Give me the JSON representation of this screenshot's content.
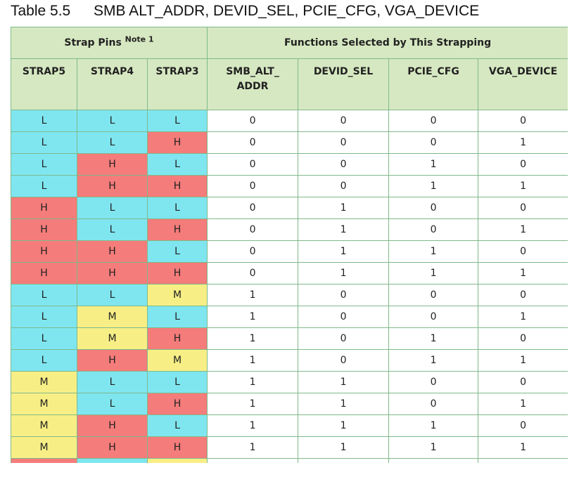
{
  "caption": {
    "number": "Table 5.5",
    "title": "SMB ALT_ADDR, DEVID_SEL, PCIE_CFG, VGA_DEVICE"
  },
  "header": {
    "group_strap": "Strap Pins",
    "group_strap_note": "Note 1",
    "group_functions": "Functions Selected by This Strapping",
    "columns": [
      "STRAP5",
      "STRAP4",
      "STRAP3",
      "SMB_ALT_ADDR",
      "DEVID_SEL",
      "PCIE_CFG",
      "VGA_DEVICE"
    ]
  },
  "rows": [
    [
      "L",
      "L",
      "L",
      "0",
      "0",
      "0",
      "0"
    ],
    [
      "L",
      "L",
      "H",
      "0",
      "0",
      "0",
      "1"
    ],
    [
      "L",
      "H",
      "L",
      "0",
      "0",
      "1",
      "0"
    ],
    [
      "L",
      "H",
      "H",
      "0",
      "0",
      "1",
      "1"
    ],
    [
      "H",
      "L",
      "L",
      "0",
      "1",
      "0",
      "0"
    ],
    [
      "H",
      "L",
      "H",
      "0",
      "1",
      "0",
      "1"
    ],
    [
      "H",
      "H",
      "L",
      "0",
      "1",
      "1",
      "0"
    ],
    [
      "H",
      "H",
      "H",
      "0",
      "1",
      "1",
      "1"
    ],
    [
      "L",
      "L",
      "M",
      "1",
      "0",
      "0",
      "0"
    ],
    [
      "L",
      "M",
      "L",
      "1",
      "0",
      "0",
      "1"
    ],
    [
      "L",
      "M",
      "H",
      "1",
      "0",
      "1",
      "0"
    ],
    [
      "L",
      "H",
      "M",
      "1",
      "0",
      "1",
      "1"
    ],
    [
      "M",
      "L",
      "L",
      "1",
      "1",
      "0",
      "0"
    ],
    [
      "M",
      "L",
      "H",
      "1",
      "1",
      "0",
      "1"
    ],
    [
      "M",
      "H",
      "L",
      "1",
      "1",
      "1",
      "0"
    ],
    [
      "M",
      "H",
      "H",
      "1",
      "1",
      "1",
      "1"
    ]
  ],
  "cut_row_levels": [
    "H",
    "L",
    "M"
  ],
  "level_colors": {
    "L": "#7fe6f0",
    "H": "#f47c7a",
    "M": "#f7ef86"
  },
  "header_color": "#d6e8c1"
}
